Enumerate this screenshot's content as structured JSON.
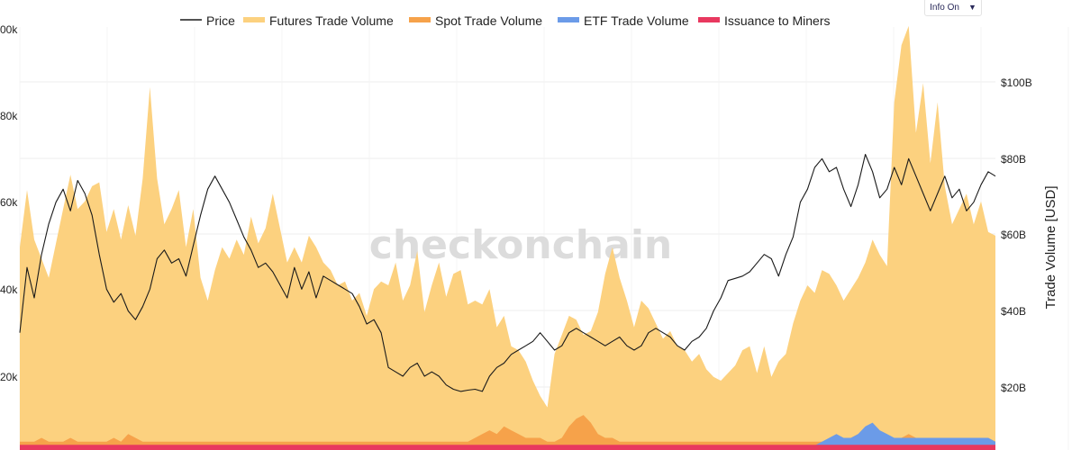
{
  "info_toggle": {
    "label": "Info On",
    "caret": "▼"
  },
  "watermark": "checkonchain",
  "colors": {
    "price": "#1a1a1a",
    "futures": "#fcd17f",
    "spot": "#f6a24a",
    "etf": "#6b9be8",
    "issuance": "#e8385f",
    "grid": "#ececec"
  },
  "chart_data": {
    "type": "area",
    "legend": [
      "Price",
      "Futures Trade Volume",
      "Spot Trade Volume",
      "ETF Trade Volume",
      "Issuance to Miners"
    ],
    "legend_position": "top",
    "y_left_ticks": [
      "00k",
      "80k",
      "60k",
      "40k",
      "20k"
    ],
    "y_right_ticks": [
      "$100B",
      "$80B",
      "$60B",
      "$40B",
      "$20B"
    ],
    "y_right_label": "Trade Volume [USD]",
    "y_right_range": [
      0,
      117
    ],
    "y_left_range": [
      0,
      100000
    ],
    "grid": true,
    "x": [
      0,
      1,
      2,
      3,
      4,
      5,
      6,
      7,
      8,
      9,
      10,
      11,
      12,
      13,
      14,
      15,
      16,
      17,
      18,
      19,
      20,
      21,
      22,
      23,
      24,
      25,
      26,
      27,
      28,
      29,
      30,
      31,
      32,
      33,
      34,
      35,
      36,
      37,
      38,
      39,
      40,
      41,
      42,
      43,
      44,
      45,
      46,
      47,
      48,
      49,
      50,
      51,
      52,
      53,
      54,
      55,
      56,
      57,
      58,
      59,
      60,
      61,
      62,
      63,
      64,
      65,
      66,
      67,
      68,
      69,
      70,
      71,
      72,
      73,
      74,
      75,
      76,
      77,
      78,
      79,
      80,
      81,
      82,
      83,
      84,
      85,
      86,
      87,
      88,
      89,
      90,
      91,
      92,
      93,
      94,
      95,
      96,
      97,
      98,
      99,
      100,
      101,
      102,
      103,
      104,
      105,
      106,
      107,
      108,
      109,
      110,
      111,
      112,
      113,
      114,
      115,
      116,
      117,
      118,
      119,
      120,
      121,
      122,
      123,
      124,
      125,
      126,
      127,
      128,
      129,
      130,
      131,
      132,
      133,
      134,
      135
    ],
    "series": [
      {
        "name": "Futures Trade Volume",
        "axis": "right",
        "values": [
          52,
          67,
          54,
          49,
          44,
          53,
          62,
          71,
          62,
          64,
          68,
          69,
          56,
          62,
          54,
          63,
          55,
          70,
          94,
          70,
          58,
          62,
          67,
          52,
          62,
          44,
          38,
          46,
          52,
          49,
          54,
          50,
          60,
          53,
          57,
          66,
          57,
          48,
          52,
          48,
          55,
          52,
          48,
          46,
          42,
          43,
          38,
          40,
          34,
          41,
          43,
          42,
          48,
          38,
          42,
          51,
          35,
          42,
          48,
          39,
          45,
          46,
          37,
          38,
          37,
          41,
          31,
          34,
          26,
          25,
          22,
          17,
          13,
          10,
          24,
          29,
          34,
          33,
          29,
          30,
          35,
          45,
          52,
          44,
          38,
          31,
          38,
          36,
          32,
          28,
          30,
          26,
          25,
          22,
          24,
          20,
          18,
          17,
          19,
          21,
          25,
          26,
          19,
          26,
          18,
          22,
          24,
          32,
          38,
          42,
          40,
          46,
          45,
          42,
          38,
          41,
          44,
          48,
          54,
          50,
          47,
          90,
          105,
          110,
          82,
          95,
          74,
          90,
          68,
          58,
          62,
          66,
          58,
          64,
          56,
          55
        ]
      },
      {
        "name": "Spot Trade Volume",
        "axis": "right",
        "values": [
          1,
          1,
          1,
          2,
          1,
          1,
          1,
          2,
          1,
          1,
          1,
          1,
          1,
          2,
          1,
          3,
          2,
          1,
          1,
          1,
          1,
          1,
          1,
          1,
          1,
          1,
          1,
          1,
          1,
          1,
          1,
          1,
          1,
          1,
          1,
          1,
          1,
          1,
          1,
          1,
          1,
          1,
          1,
          1,
          1,
          1,
          1,
          1,
          1,
          1,
          1,
          1,
          1,
          1,
          1,
          1,
          1,
          1,
          1,
          1,
          1,
          1,
          1,
          2,
          3,
          4,
          3,
          5,
          4,
          3,
          2,
          2,
          2,
          1,
          1,
          2,
          5,
          7,
          8,
          6,
          3,
          2,
          2,
          1,
          1,
          1,
          1,
          1,
          1,
          1,
          1,
          1,
          1,
          1,
          1,
          1,
          1,
          1,
          1,
          1,
          1,
          1,
          1,
          1,
          1,
          1,
          1,
          1,
          1,
          1,
          1,
          1,
          1,
          1,
          2,
          2,
          3,
          3,
          2,
          3,
          2,
          2,
          2,
          3,
          2,
          2,
          2,
          2,
          2,
          2,
          2,
          2,
          2,
          2,
          2,
          1
        ]
      },
      {
        "name": "ETF Trade Volume",
        "axis": "right",
        "values": [
          0,
          0,
          0,
          0,
          0,
          0,
          0,
          0,
          0,
          0,
          0,
          0,
          0,
          0,
          0,
          0,
          0,
          0,
          0,
          0,
          0,
          0,
          0,
          0,
          0,
          0,
          0,
          0,
          0,
          0,
          0,
          0,
          0,
          0,
          0,
          0,
          0,
          0,
          0,
          0,
          0,
          0,
          0,
          0,
          0,
          0,
          0,
          0,
          0,
          0,
          0,
          0,
          0,
          0,
          0,
          0,
          0,
          0,
          0,
          0,
          0,
          0,
          0,
          0,
          0,
          0,
          0,
          0,
          0,
          0,
          0,
          0,
          0,
          0,
          0,
          0,
          0,
          0,
          0,
          0,
          0,
          0,
          0,
          0,
          0,
          0,
          0,
          0,
          0,
          0,
          0,
          0,
          0,
          0,
          0,
          0,
          0,
          0,
          0,
          0,
          0,
          0,
          0,
          0,
          0,
          0,
          0,
          0,
          0,
          0,
          0,
          1,
          2,
          3,
          2,
          2,
          3,
          5,
          6,
          4,
          3,
          2,
          2,
          2,
          2,
          2,
          2,
          2,
          2,
          2,
          2,
          2,
          2,
          2,
          2,
          1
        ]
      },
      {
        "name": "Issuance to Miners",
        "axis": "right",
        "values": [
          0.2,
          0.2,
          0.2,
          0.2,
          0.2,
          0.2,
          0.2,
          0.2,
          0.2,
          0.2,
          0.2,
          0.2,
          0.2,
          0.2,
          0.2,
          0.2,
          0.2,
          0.2,
          0.2,
          0.2,
          0.2,
          0.2,
          0.2,
          0.2,
          0.2,
          0.2,
          0.2,
          0.2,
          0.2,
          0.2,
          0.2,
          0.2,
          0.2,
          0.2,
          0.2,
          0.2,
          0.2,
          0.2,
          0.2,
          0.2,
          0.2,
          0.2,
          0.2,
          0.2,
          0.2,
          0.2,
          0.2,
          0.2,
          0.2,
          0.2,
          0.2,
          0.2,
          0.2,
          0.2,
          0.2,
          0.2,
          0.2,
          0.2,
          0.2,
          0.2,
          0.2,
          0.2,
          0.2,
          0.2,
          0.2,
          0.2,
          0.2,
          0.2,
          0.2,
          0.2,
          0.2,
          0.2,
          0.2,
          0.2,
          0.2,
          0.2,
          0.2,
          0.2,
          0.2,
          0.2,
          0.2,
          0.2,
          0.2,
          0.2,
          0.2,
          0.2,
          0.2,
          0.2,
          0.2,
          0.2,
          0.2,
          0.2,
          0.2,
          0.2,
          0.2,
          0.2,
          0.2,
          0.2,
          0.2,
          0.2,
          0.2,
          0.2,
          0.2,
          0.2,
          0.2,
          0.2,
          0.2,
          0.2,
          0.2,
          0.2,
          0.2,
          0.2,
          0.2,
          0.2,
          0.2,
          0.2,
          0.2,
          0.2,
          0.2,
          0.2,
          0.2,
          0.2,
          0.2,
          0.2,
          0.2,
          0.2,
          0.2,
          0.2,
          0.2,
          0.2,
          0.2,
          0.2,
          0.2,
          0.2,
          0.2,
          0.2
        ]
      },
      {
        "name": "Price",
        "axis": "left",
        "values": [
          30000,
          45000,
          38000,
          48000,
          55000,
          60000,
          63000,
          58000,
          65000,
          62000,
          57000,
          48000,
          40000,
          37000,
          39000,
          35000,
          33000,
          36000,
          40000,
          47000,
          49000,
          46000,
          47000,
          43000,
          50000,
          57000,
          63000,
          66000,
          63000,
          60000,
          56000,
          52000,
          49000,
          45000,
          46000,
          44000,
          41000,
          38000,
          45000,
          40000,
          44000,
          38000,
          43000,
          42000,
          41000,
          40000,
          39000,
          36000,
          32000,
          33000,
          30000,
          22000,
          21000,
          20000,
          22000,
          23000,
          20000,
          21000,
          20000,
          18000,
          17000,
          16500,
          16800,
          17000,
          16500,
          20000,
          22000,
          23000,
          25000,
          26000,
          27000,
          28000,
          30000,
          28000,
          26000,
          27000,
          30000,
          31000,
          30000,
          29000,
          28000,
          27000,
          28000,
          29000,
          27000,
          26000,
          27000,
          30000,
          31000,
          30000,
          29000,
          27000,
          26000,
          28000,
          29000,
          31000,
          35000,
          38000,
          42000,
          42500,
          43000,
          44000,
          46000,
          48000,
          47000,
          43000,
          48000,
          52000,
          60000,
          63000,
          68000,
          70000,
          67000,
          68000,
          63000,
          59000,
          64000,
          71000,
          67000,
          61000,
          63000,
          68000,
          64000,
          70000,
          66000,
          62000,
          58000,
          62000,
          66000,
          61000,
          63000,
          58000,
          60000,
          64000,
          67000,
          66000
        ]
      }
    ]
  }
}
